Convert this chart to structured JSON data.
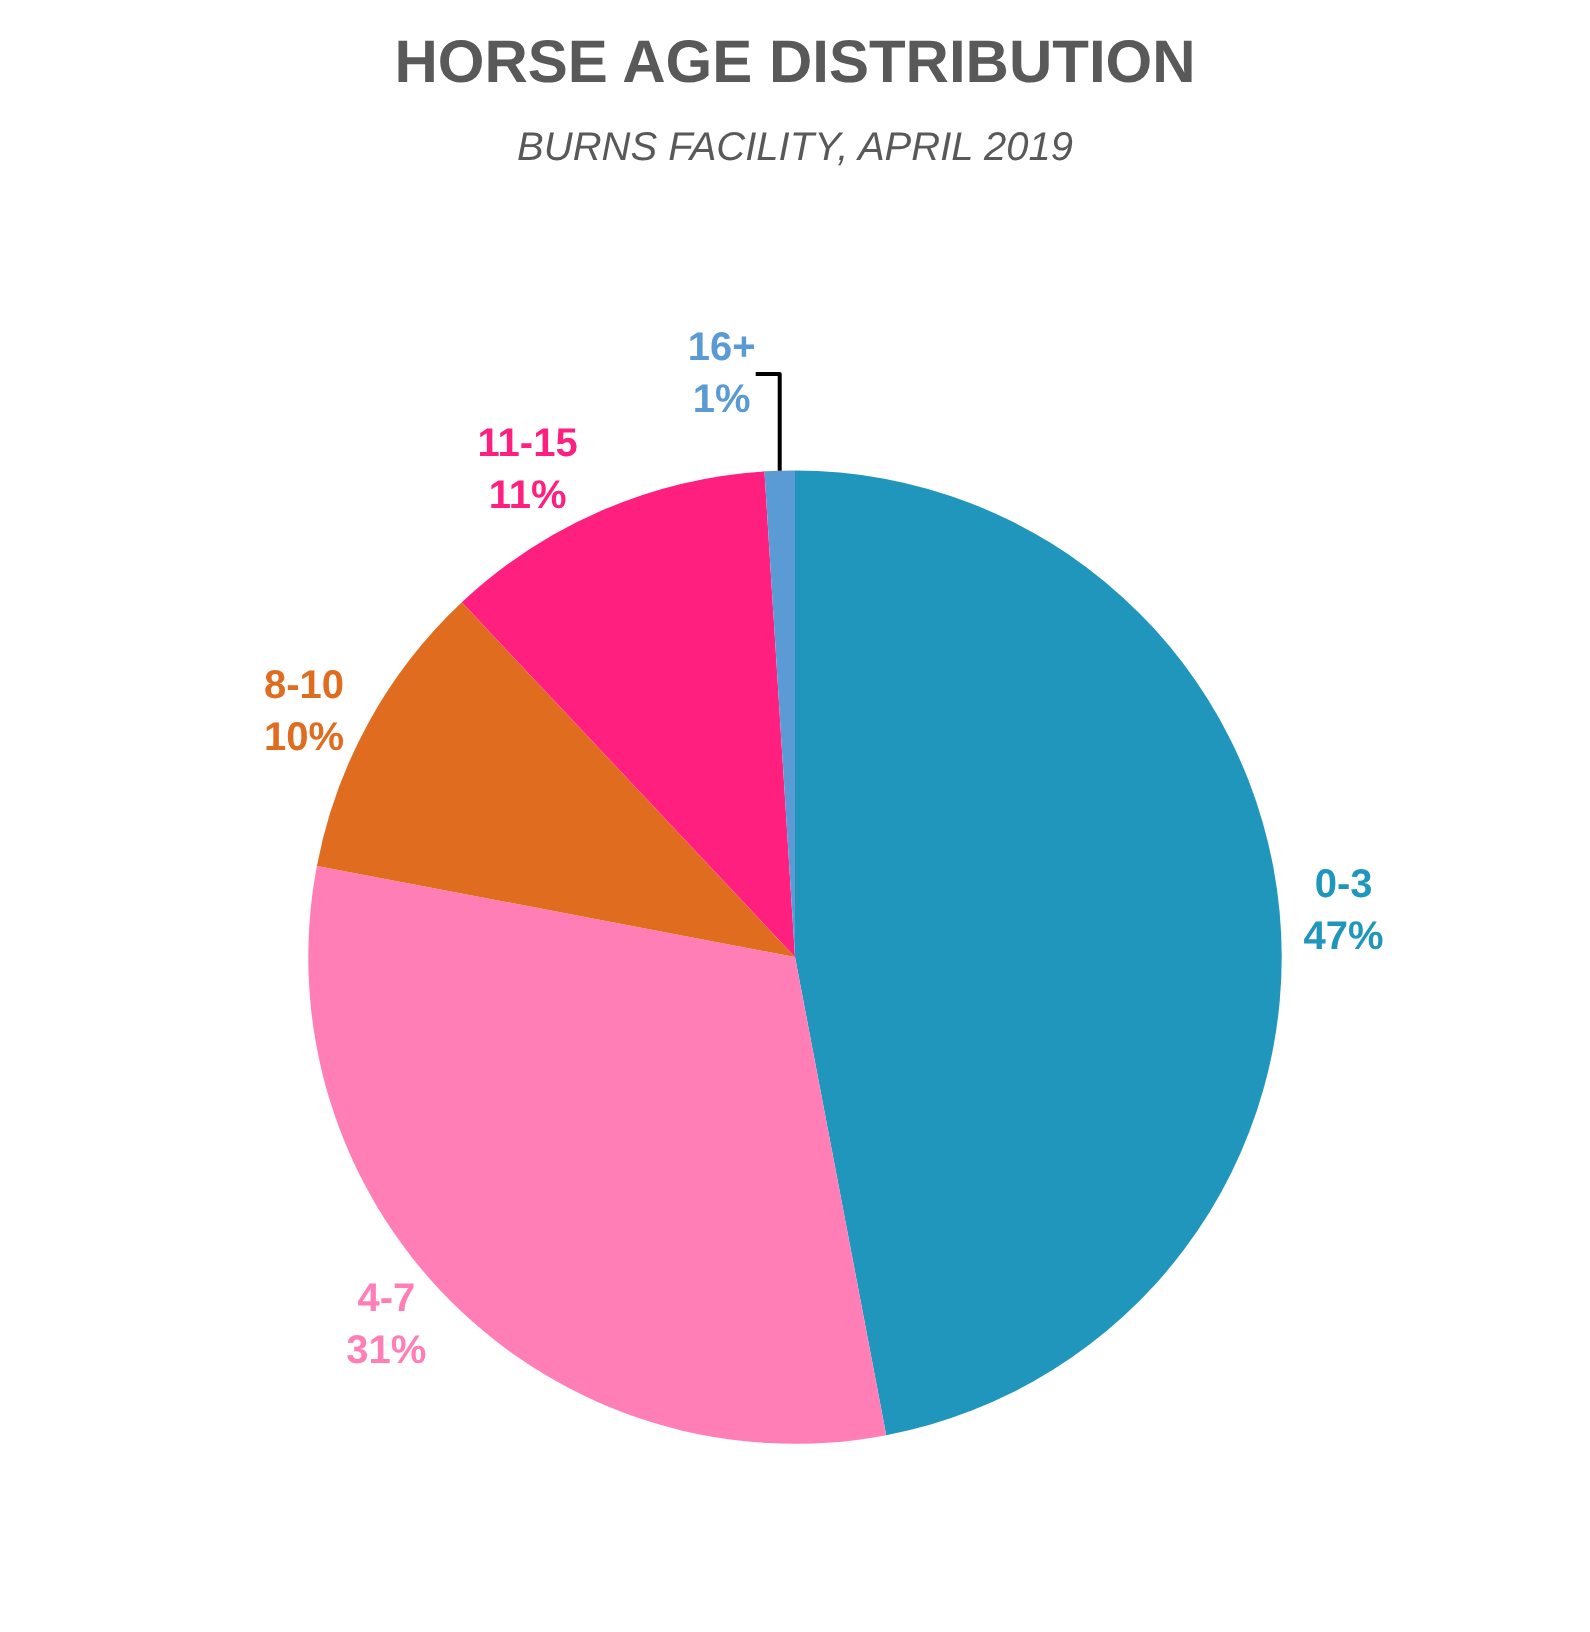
{
  "chart_data": {
    "type": "pie",
    "title": "HORSE AGE DISTRIBUTION",
    "subtitle": "BURNS FACILITY, APRIL 2019",
    "categories": [
      "0-3",
      "4-7",
      "8-10",
      "11-15",
      "16+"
    ],
    "values": [
      47,
      31,
      10,
      11,
      1
    ],
    "value_labels": [
      "47%",
      "31%",
      "10%",
      "11%",
      "1%"
    ],
    "colors": [
      "#2196bd",
      "#ff7eb6",
      "#e06c20",
      "#ff1f7f",
      "#5b9bd5"
    ],
    "legend": false
  }
}
